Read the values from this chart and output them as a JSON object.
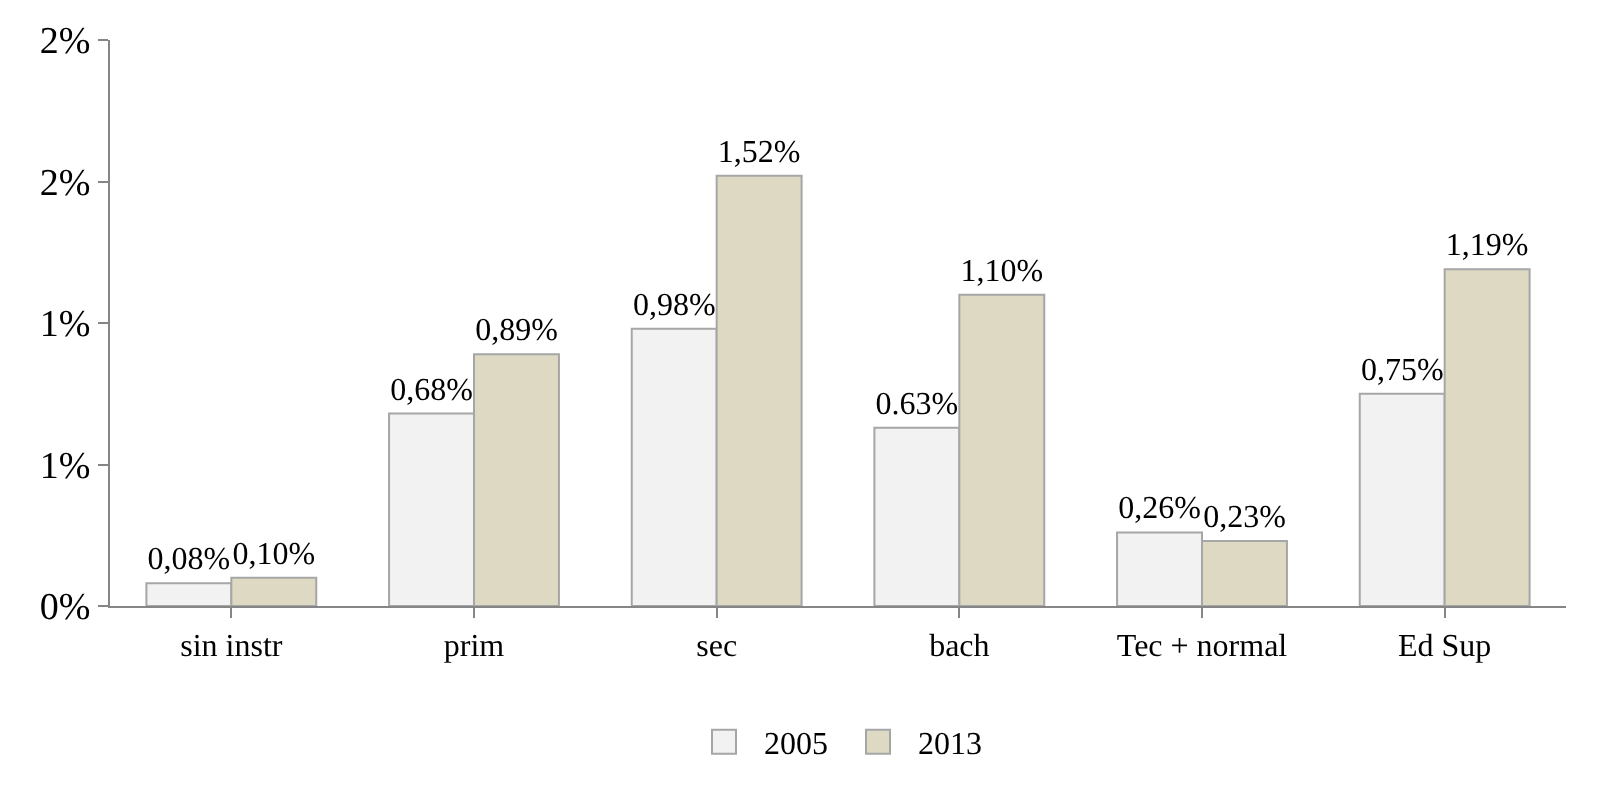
{
  "chart_data": {
    "type": "bar",
    "categories": [
      "sin instr",
      "prim",
      "sec",
      "bach",
      "Tec + normal",
      "Ed Sup"
    ],
    "series": [
      {
        "name": "2005",
        "color": "#f2f2f2",
        "values": [
          0.08,
          0.68,
          0.98,
          0.63,
          0.26,
          0.75
        ],
        "value_labels": [
          "0,08%",
          "0,68%",
          "0,98%",
          "0.63%",
          "0,26%",
          "0,75%"
        ]
      },
      {
        "name": "2013",
        "color": "#ddd9c3",
        "values": [
          0.1,
          0.89,
          1.52,
          1.1,
          0.23,
          1.19
        ],
        "value_labels": [
          "0,10%",
          "0,89%",
          "1,52%",
          "1,10%",
          "0,23%",
          "1,19%"
        ]
      }
    ],
    "ylim": [
      0,
      2
    ],
    "yticks": [
      {
        "value": 0,
        "label": "0%"
      },
      {
        "value": 0.5,
        "label": "1%"
      },
      {
        "value": 1,
        "label": "1%"
      },
      {
        "value": 1.5,
        "label": "2%"
      },
      {
        "value": 2,
        "label": "2%"
      }
    ],
    "legend": "bottom"
  }
}
